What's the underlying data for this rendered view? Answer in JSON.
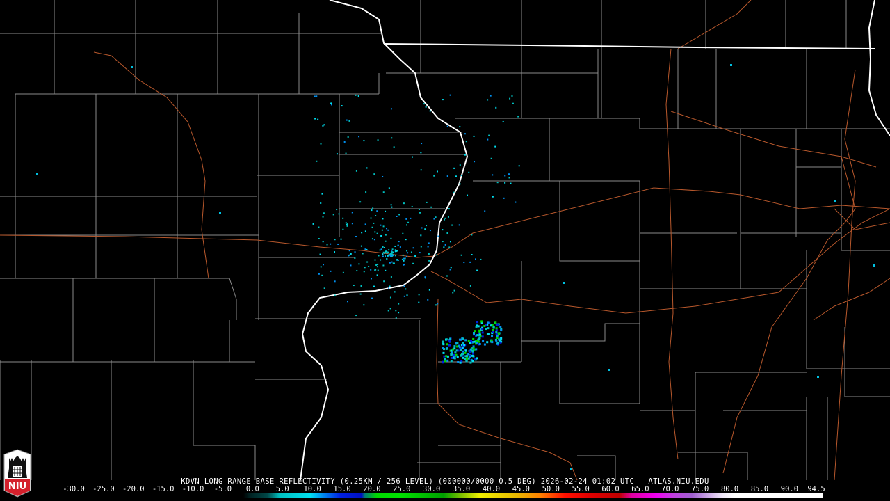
{
  "header": {
    "product_title": "KDVN LONG RANGE BASE REFLECTIVITY (0.25KM / 256 LEVEL) (000000/0000 0.5 DEG) 2026-02-24 01:02 UTC   ATLAS.NIU.EDU"
  },
  "logo": {
    "text": "NIU"
  },
  "colors": {
    "background": "#000000",
    "county_lines": "#8a8a8a",
    "state_lines": "#ffffff",
    "highways": "#b8582c"
  },
  "color_scale": {
    "min": -30.0,
    "max": 94.5,
    "labels": [
      "-30.0",
      "-25.0",
      "-20.0",
      "-15.0",
      "-10.0",
      "-5.0",
      "0.0",
      "5.0",
      "10.0",
      "15.0",
      "20.0",
      "25.0",
      "30.0",
      "35.0",
      "40.0",
      "45.0",
      "50.0",
      "55.0",
      "60.0",
      "65.0",
      "70.0",
      "75.0",
      "80.0",
      "85.0",
      "90.0",
      "94.5"
    ],
    "stops": [
      {
        "dbz": -30,
        "color": "#000000"
      },
      {
        "dbz": -1,
        "color": "#000000"
      },
      {
        "dbz": 0,
        "color": "#002020"
      },
      {
        "dbz": 3,
        "color": "#004848"
      },
      {
        "dbz": 5,
        "color": "#00c0c0"
      },
      {
        "dbz": 10,
        "color": "#00e0f0"
      },
      {
        "dbz": 12,
        "color": "#0090f0"
      },
      {
        "dbz": 15,
        "color": "#0020e0"
      },
      {
        "dbz": 18.5,
        "color": "#0010c0"
      },
      {
        "dbz": 19,
        "color": "#007878"
      },
      {
        "dbz": 21,
        "color": "#00d800"
      },
      {
        "dbz": 25,
        "color": "#00e000"
      },
      {
        "dbz": 32,
        "color": "#00a000"
      },
      {
        "dbz": 35,
        "color": "#80c000"
      },
      {
        "dbz": 38,
        "color": "#f0f000"
      },
      {
        "dbz": 44,
        "color": "#e8b800"
      },
      {
        "dbz": 48,
        "color": "#ff8000"
      },
      {
        "dbz": 52,
        "color": "#ff1000"
      },
      {
        "dbz": 56,
        "color": "#e00000"
      },
      {
        "dbz": 61,
        "color": "#c00000"
      },
      {
        "dbz": 63,
        "color": "#e000a0"
      },
      {
        "dbz": 67,
        "color": "#f000f0"
      },
      {
        "dbz": 70,
        "color": "#c040e0"
      },
      {
        "dbz": 73,
        "color": "#a060d0"
      },
      {
        "dbz": 76,
        "color": "#d0b0e8"
      },
      {
        "dbz": 78,
        "color": "#f0e8f8"
      },
      {
        "dbz": 80,
        "color": "#ffffff"
      },
      {
        "dbz": 94.5,
        "color": "#ffffff"
      }
    ]
  }
}
